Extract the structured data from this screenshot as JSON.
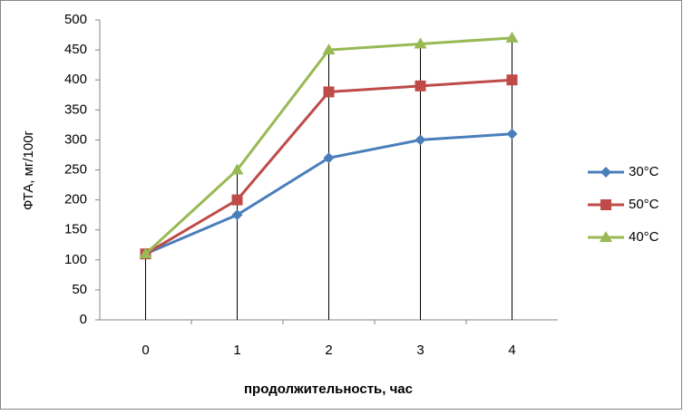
{
  "chart_data": {
    "type": "line",
    "x_label": "продолжительность, час",
    "y_label": "ФТА, мг/100г",
    "categories": [
      "0",
      "1",
      "2",
      "3",
      "4"
    ],
    "series": [
      {
        "name": "30°C",
        "color": "#4a7ebb",
        "marker": "diamond",
        "values": [
          110,
          175,
          270,
          300,
          310
        ]
      },
      {
        "name": "50°C",
        "color": "#be4b48",
        "marker": "square",
        "values": [
          110,
          200,
          380,
          390,
          400
        ]
      },
      {
        "name": "40°C",
        "color": "#98b954",
        "marker": "triangle",
        "values": [
          110,
          250,
          450,
          460,
          470
        ]
      }
    ],
    "ylim": [
      0,
      500
    ],
    "yticks": [
      0,
      50,
      100,
      150,
      200,
      250,
      300,
      350,
      400,
      450,
      500
    ],
    "grid": false,
    "drop_lines": true,
    "legend": "right"
  }
}
